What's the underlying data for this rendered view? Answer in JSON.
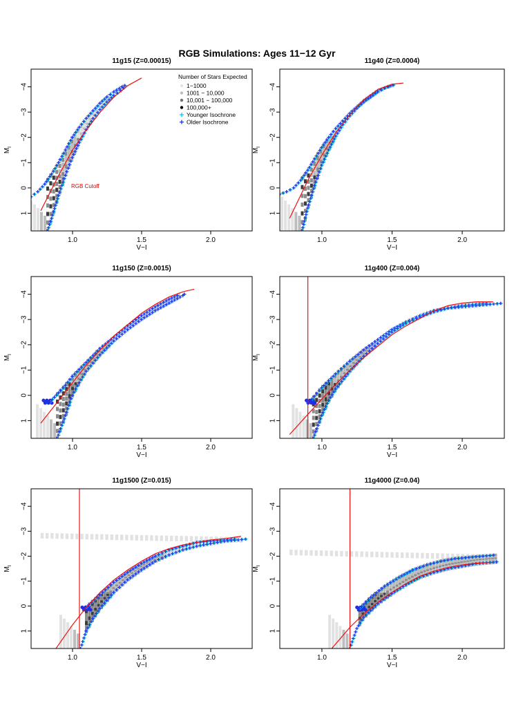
{
  "figure": {
    "title": "RGB Simulations: Ages 11−12 Gyr",
    "colors": {
      "frame": "#000000",
      "cutoff": "#ee1111",
      "younger": "#00c8f0",
      "older": "#1f2fe0",
      "density": [
        "#e2e2e2",
        "#bdbdbd",
        "#8c8c8c",
        "#3c3c3c"
      ]
    }
  },
  "legend": {
    "title": "Number of Stars Expected",
    "items": [
      {
        "label": "1−1000",
        "kind": "dot",
        "color": "#e2e2e2"
      },
      {
        "label": "1001 − 10,000",
        "kind": "dot",
        "color": "#bdbdbd"
      },
      {
        "label": "10,001 − 100,000",
        "kind": "dot",
        "color": "#6f6f6f"
      },
      {
        "label": "100,000+",
        "kind": "dot",
        "color": "#000000"
      },
      {
        "label": "Younger Isochrone",
        "kind": "plus",
        "color": "#00c8f0"
      },
      {
        "label": "Older Isochrone",
        "kind": "plus",
        "color": "#1f2fe0"
      }
    ]
  },
  "chart_data": [
    {
      "type": "scatter",
      "title": "11g15 (Z=0.00015)",
      "xlabel": "V−I",
      "ylabel": "M",
      "ylabel_sub": "I",
      "xlim": [
        0.7,
        2.3
      ],
      "ylim": [
        1.7,
        -4.7
      ],
      "xticks": [
        1.0,
        1.5,
        2.0
      ],
      "yticks": [
        -4,
        -3,
        -2,
        -1,
        0,
        1
      ],
      "xtick_labels": [
        "1.0",
        "1.5",
        "2.0"
      ],
      "ytick_labels": [
        "−4",
        "−3",
        "−2",
        "−1",
        "0",
        "1"
      ],
      "cutoff_curve": [
        [
          0.77,
          0.9
        ],
        [
          0.9,
          -0.5
        ],
        [
          1.0,
          -1.5
        ],
        [
          1.1,
          -2.3
        ],
        [
          1.2,
          -3.0
        ],
        [
          1.3,
          -3.6
        ],
        [
          1.4,
          -4.05
        ],
        [
          1.5,
          -4.35
        ]
      ],
      "cutoff_vline": null,
      "annotation": {
        "text": "RGB Cutoff",
        "x": 0.99,
        "y": 0.0
      },
      "older_isochrone": [
        [
          0.82,
          1.7
        ],
        [
          0.85,
          1.2
        ],
        [
          0.9,
          0.3
        ],
        [
          0.95,
          -0.5
        ],
        [
          1.0,
          -1.2
        ],
        [
          1.05,
          -1.8
        ],
        [
          1.1,
          -2.3
        ],
        [
          1.15,
          -2.75
        ],
        [
          1.2,
          -3.1
        ],
        [
          1.25,
          -3.4
        ],
        [
          1.3,
          -3.65
        ],
        [
          1.35,
          -3.85
        ],
        [
          1.39,
          -4.05
        ]
      ],
      "younger_isochrone": [
        [
          0.7,
          0.35
        ],
        [
          0.75,
          0.15
        ],
        [
          0.8,
          -0.15
        ],
        [
          0.85,
          -0.55
        ],
        [
          0.9,
          -1.0
        ],
        [
          0.95,
          -1.5
        ],
        [
          1.0,
          -2.0
        ],
        [
          1.05,
          -2.4
        ],
        [
          1.1,
          -2.75
        ],
        [
          1.15,
          -3.05
        ],
        [
          1.2,
          -3.35
        ],
        [
          1.25,
          -3.6
        ],
        [
          1.3,
          -3.8
        ],
        [
          1.36,
          -4.0
        ],
        [
          1.4,
          -4.1
        ]
      ],
      "clump": null,
      "horizontal_band": null
    },
    {
      "type": "scatter",
      "title": "11g40 (Z=0.0004)",
      "xlabel": "V−I",
      "ylabel": "M",
      "ylabel_sub": "I",
      "xlim": [
        0.7,
        2.3
      ],
      "ylim": [
        1.7,
        -4.7
      ],
      "xticks": [
        1.0,
        1.5,
        2.0
      ],
      "yticks": [
        -4,
        -3,
        -2,
        -1,
        0,
        1
      ],
      "xtick_labels": [
        "1.0",
        "1.5",
        "2.0"
      ],
      "ytick_labels": [
        "−4",
        "−3",
        "−2",
        "−1",
        "0",
        "1"
      ],
      "cutoff_curve": [
        [
          0.77,
          1.2
        ],
        [
          0.9,
          -0.3
        ],
        [
          1.0,
          -1.3
        ],
        [
          1.1,
          -2.2
        ],
        [
          1.2,
          -2.9
        ],
        [
          1.3,
          -3.5
        ],
        [
          1.4,
          -3.9
        ],
        [
          1.5,
          -4.1
        ],
        [
          1.58,
          -4.15
        ]
      ],
      "cutoff_vline": null,
      "annotation": null,
      "older_isochrone": [
        [
          0.86,
          1.7
        ],
        [
          0.9,
          0.8
        ],
        [
          0.95,
          -0.1
        ],
        [
          1.0,
          -0.9
        ],
        [
          1.05,
          -1.5
        ],
        [
          1.1,
          -2.05
        ],
        [
          1.15,
          -2.5
        ],
        [
          1.2,
          -2.85
        ],
        [
          1.25,
          -3.15
        ],
        [
          1.3,
          -3.4
        ],
        [
          1.35,
          -3.6
        ],
        [
          1.4,
          -3.8
        ],
        [
          1.45,
          -3.95
        ],
        [
          1.5,
          -4.05
        ]
      ],
      "younger_isochrone": [
        [
          0.7,
          0.25
        ],
        [
          0.75,
          0.15
        ],
        [
          0.8,
          0.0
        ],
        [
          0.85,
          -0.3
        ],
        [
          0.9,
          -0.7
        ],
        [
          0.95,
          -1.15
        ],
        [
          1.0,
          -1.6
        ],
        [
          1.05,
          -2.0
        ],
        [
          1.1,
          -2.35
        ],
        [
          1.15,
          -2.65
        ],
        [
          1.2,
          -2.95
        ],
        [
          1.25,
          -3.2
        ],
        [
          1.3,
          -3.45
        ],
        [
          1.35,
          -3.65
        ],
        [
          1.4,
          -3.85
        ],
        [
          1.47,
          -4.0
        ],
        [
          1.53,
          -4.1
        ]
      ],
      "clump": null,
      "horizontal_band": null
    },
    {
      "type": "scatter",
      "title": "11g150 (Z=0.0015)",
      "xlabel": "V−I",
      "ylabel": "M",
      "ylabel_sub": "I",
      "xlim": [
        0.7,
        2.3
      ],
      "ylim": [
        1.7,
        -4.7
      ],
      "xticks": [
        1.0,
        1.5,
        2.0
      ],
      "yticks": [
        -4,
        -3,
        -2,
        -1,
        0,
        1
      ],
      "xtick_labels": [
        "1.0",
        "1.5",
        "2.0"
      ],
      "ytick_labels": [
        "−4",
        "−3",
        "−2",
        "−1",
        "0",
        "1"
      ],
      "cutoff_curve": [
        [
          0.77,
          1.1
        ],
        [
          0.9,
          0.2
        ],
        [
          1.0,
          -0.5
        ],
        [
          1.1,
          -1.2
        ],
        [
          1.2,
          -1.8
        ],
        [
          1.3,
          -2.35
        ],
        [
          1.4,
          -2.8
        ],
        [
          1.5,
          -3.25
        ],
        [
          1.6,
          -3.6
        ],
        [
          1.7,
          -3.9
        ],
        [
          1.8,
          -4.1
        ],
        [
          1.88,
          -4.2
        ]
      ],
      "cutoff_vline": null,
      "annotation": null,
      "older_isochrone": [
        [
          0.89,
          1.7
        ],
        [
          0.95,
          0.8
        ],
        [
          1.0,
          0.0
        ],
        [
          1.05,
          -0.5
        ],
        [
          1.1,
          -0.95
        ],
        [
          1.2,
          -1.6
        ],
        [
          1.3,
          -2.15
        ],
        [
          1.4,
          -2.6
        ],
        [
          1.5,
          -3.0
        ],
        [
          1.6,
          -3.35
        ],
        [
          1.7,
          -3.65
        ],
        [
          1.8,
          -3.95
        ],
        [
          1.82,
          -4.05
        ]
      ],
      "younger_isochrone": [
        [
          0.84,
          0.25
        ],
        [
          0.9,
          -0.1
        ],
        [
          0.95,
          -0.4
        ],
        [
          1.0,
          -0.75
        ],
        [
          1.1,
          -1.3
        ],
        [
          1.2,
          -1.85
        ],
        [
          1.3,
          -2.3
        ],
        [
          1.4,
          -2.75
        ],
        [
          1.5,
          -3.15
        ],
        [
          1.6,
          -3.5
        ],
        [
          1.7,
          -3.8
        ],
        [
          1.78,
          -4.0
        ]
      ],
      "clump": [
        0.82,
        0.25
      ],
      "horizontal_band": null
    },
    {
      "type": "scatter",
      "title": "11g400 (Z=0.004)",
      "xlabel": "V−I",
      "ylabel": "M",
      "ylabel_sub": "I",
      "xlim": [
        0.7,
        2.3
      ],
      "ylim": [
        1.7,
        -4.7
      ],
      "xticks": [
        1.0,
        1.5,
        2.0
      ],
      "yticks": [
        -4,
        -3,
        -2,
        -1,
        0,
        1
      ],
      "xtick_labels": [
        "1.0",
        "1.5",
        "2.0"
      ],
      "ytick_labels": [
        "−4",
        "−3",
        "−2",
        "−1",
        "0",
        "1"
      ],
      "cutoff_curve": [
        [
          0.77,
          1.55
        ],
        [
          0.9,
          0.75
        ],
        [
          1.0,
          0.15
        ],
        [
          1.1,
          -0.45
        ],
        [
          1.2,
          -1.0
        ],
        [
          1.3,
          -1.5
        ],
        [
          1.4,
          -1.95
        ],
        [
          1.5,
          -2.4
        ],
        [
          1.6,
          -2.75
        ],
        [
          1.7,
          -3.05
        ],
        [
          1.8,
          -3.35
        ],
        [
          1.9,
          -3.55
        ],
        [
          2.0,
          -3.65
        ],
        [
          2.1,
          -3.7
        ],
        [
          2.22,
          -3.7
        ]
      ],
      "cutoff_vline": 0.9,
      "annotation": null,
      "older_isochrone": [
        [
          0.94,
          1.7
        ],
        [
          1.0,
          0.8
        ],
        [
          1.05,
          0.2
        ],
        [
          1.1,
          -0.25
        ],
        [
          1.2,
          -0.95
        ],
        [
          1.3,
          -1.55
        ],
        [
          1.4,
          -2.05
        ],
        [
          1.5,
          -2.5
        ],
        [
          1.6,
          -2.85
        ],
        [
          1.7,
          -3.1
        ],
        [
          1.8,
          -3.3
        ],
        [
          1.9,
          -3.45
        ],
        [
          2.0,
          -3.5
        ],
        [
          2.1,
          -3.55
        ],
        [
          2.2,
          -3.6
        ],
        [
          2.3,
          -3.65
        ]
      ],
      "younger_isochrone": [
        [
          0.93,
          0.15
        ],
        [
          1.0,
          -0.3
        ],
        [
          1.1,
          -0.85
        ],
        [
          1.2,
          -1.35
        ],
        [
          1.3,
          -1.8
        ],
        [
          1.4,
          -2.2
        ],
        [
          1.5,
          -2.6
        ],
        [
          1.6,
          -2.9
        ],
        [
          1.7,
          -3.15
        ],
        [
          1.8,
          -3.35
        ],
        [
          1.9,
          -3.45
        ],
        [
          2.0,
          -3.55
        ],
        [
          2.1,
          -3.6
        ],
        [
          2.2,
          -3.65
        ]
      ],
      "clump": [
        0.92,
        0.25
      ],
      "horizontal_band": null
    },
    {
      "type": "scatter",
      "title": "11g1500 (Z=0.015)",
      "xlabel": "V−I",
      "ylabel": "M",
      "ylabel_sub": "I",
      "xlim": [
        0.7,
        2.3
      ],
      "ylim": [
        1.7,
        -4.7
      ],
      "xticks": [
        1.0,
        1.5,
        2.0
      ],
      "yticks": [
        -4,
        -3,
        -2,
        -1,
        0,
        1
      ],
      "xtick_labels": [
        "1.0",
        "1.5",
        "2.0"
      ],
      "ytick_labels": [
        "−4",
        "−3",
        "−2",
        "−1",
        "0",
        "1"
      ],
      "cutoff_curve": [
        [
          0.88,
          1.7
        ],
        [
          1.0,
          0.75
        ],
        [
          1.1,
          0.05
        ],
        [
          1.2,
          -0.55
        ],
        [
          1.3,
          -1.05
        ],
        [
          1.4,
          -1.45
        ],
        [
          1.5,
          -1.8
        ],
        [
          1.6,
          -2.1
        ],
        [
          1.7,
          -2.3
        ],
        [
          1.8,
          -2.45
        ],
        [
          1.9,
          -2.55
        ],
        [
          2.0,
          -2.65
        ],
        [
          2.1,
          -2.7
        ],
        [
          2.22,
          -2.8
        ]
      ],
      "cutoff_vline": 1.05,
      "annotation": null,
      "older_isochrone": [
        [
          1.06,
          1.7
        ],
        [
          1.1,
          1.0
        ],
        [
          1.15,
          0.5
        ],
        [
          1.2,
          0.1
        ],
        [
          1.3,
          -0.55
        ],
        [
          1.4,
          -1.05
        ],
        [
          1.5,
          -1.45
        ],
        [
          1.6,
          -1.8
        ],
        [
          1.7,
          -2.05
        ],
        [
          1.8,
          -2.25
        ],
        [
          1.9,
          -2.4
        ],
        [
          2.0,
          -2.5
        ],
        [
          2.1,
          -2.6
        ],
        [
          2.2,
          -2.65
        ],
        [
          2.28,
          -2.7
        ]
      ],
      "younger_isochrone": [
        [
          1.1,
          0.05
        ],
        [
          1.2,
          -0.45
        ],
        [
          1.3,
          -0.95
        ],
        [
          1.4,
          -1.35
        ],
        [
          1.5,
          -1.7
        ],
        [
          1.6,
          -2.0
        ],
        [
          1.7,
          -2.25
        ],
        [
          1.8,
          -2.4
        ],
        [
          1.9,
          -2.55
        ],
        [
          2.0,
          -2.6
        ],
        [
          2.1,
          -2.65
        ],
        [
          2.2,
          -2.7
        ]
      ],
      "clump": [
        1.1,
        0.1
      ],
      "horizontal_band": [
        [
          0.78,
          -2.82
        ],
        [
          2.22,
          -2.65
        ]
      ]
    },
    {
      "type": "scatter",
      "title": "11g4000 (Z=0.04)",
      "xlabel": "V−I",
      "ylabel": "M",
      "ylabel_sub": "I",
      "xlim": [
        0.7,
        2.3
      ],
      "ylim": [
        1.7,
        -4.7
      ],
      "xticks": [
        1.0,
        1.5,
        2.0
      ],
      "yticks": [
        -4,
        -3,
        -2,
        -1,
        0,
        1
      ],
      "xtick_labels": [
        "1.0",
        "1.5",
        "2.0"
      ],
      "ytick_labels": [
        "−4",
        "−3",
        "−2",
        "−1",
        "0",
        "1"
      ],
      "cutoff_curve": [
        [
          1.07,
          1.7
        ],
        [
          1.2,
          0.85
        ],
        [
          1.3,
          0.3
        ],
        [
          1.4,
          -0.15
        ],
        [
          1.5,
          -0.55
        ],
        [
          1.6,
          -0.9
        ],
        [
          1.7,
          -1.2
        ],
        [
          1.8,
          -1.4
        ],
        [
          1.9,
          -1.55
        ],
        [
          2.0,
          -1.65
        ],
        [
          2.1,
          -1.72
        ],
        [
          2.22,
          -1.75
        ]
      ],
      "cutoff_vline": 1.2,
      "annotation": null,
      "older_isochrone": [
        [
          1.2,
          1.7
        ],
        [
          1.25,
          0.9
        ],
        [
          1.3,
          0.45
        ],
        [
          1.4,
          -0.1
        ],
        [
          1.5,
          -0.5
        ],
        [
          1.6,
          -0.85
        ],
        [
          1.7,
          -1.15
        ],
        [
          1.8,
          -1.35
        ],
        [
          1.9,
          -1.5
        ],
        [
          2.0,
          -1.6
        ],
        [
          2.1,
          -1.7
        ],
        [
          2.2,
          -1.75
        ],
        [
          2.27,
          -1.78
        ]
      ],
      "younger_isochrone": [
        [
          1.27,
          0.1
        ],
        [
          1.35,
          -0.35
        ],
        [
          1.45,
          -0.8
        ],
        [
          1.55,
          -1.15
        ],
        [
          1.65,
          -1.45
        ],
        [
          1.75,
          -1.65
        ],
        [
          1.85,
          -1.8
        ],
        [
          1.95,
          -1.9
        ],
        [
          2.05,
          -1.95
        ],
        [
          2.15,
          -2.0
        ],
        [
          2.25,
          -2.05
        ]
      ],
      "clump": [
        1.28,
        0.1
      ],
      "horizontal_band": [
        [
          0.78,
          -2.15
        ],
        [
          2.22,
          -1.95
        ]
      ]
    }
  ]
}
